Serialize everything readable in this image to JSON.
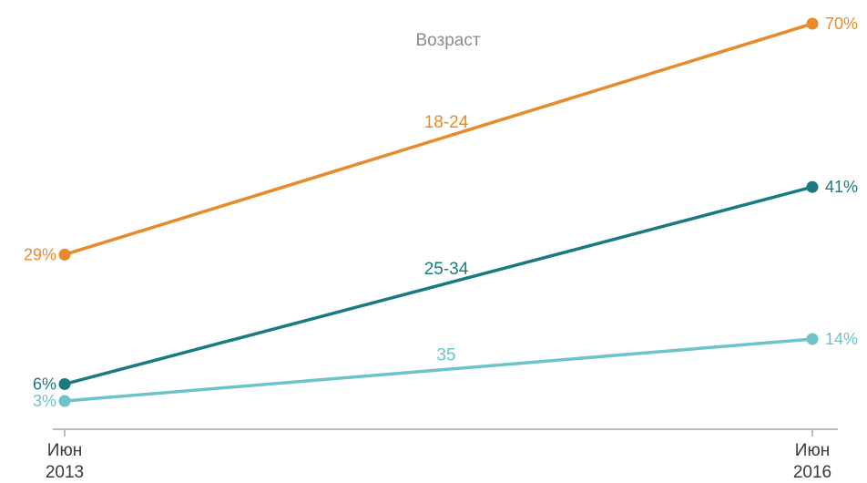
{
  "chart_data": {
    "type": "line",
    "legend_title": "Возраст",
    "x": [
      {
        "line1": "Июн",
        "line2": "2013"
      },
      {
        "line1": "Июн",
        "line2": "2016"
      }
    ],
    "ylim": [
      0,
      75
    ],
    "grid": false,
    "series": [
      {
        "name": "18-24",
        "values": [
          29,
          70
        ],
        "labels": [
          "29%",
          "70%"
        ],
        "color": "#e8892b"
      },
      {
        "name": "25-34",
        "values": [
          6,
          41
        ],
        "labels": [
          "6%",
          "41%"
        ],
        "color": "#1a7a80"
      },
      {
        "name": "35",
        "values": [
          3,
          14
        ],
        "labels": [
          "3%",
          "14%"
        ],
        "color": "#6cc3c8"
      }
    ],
    "axis_color": "#bdbdbd"
  }
}
